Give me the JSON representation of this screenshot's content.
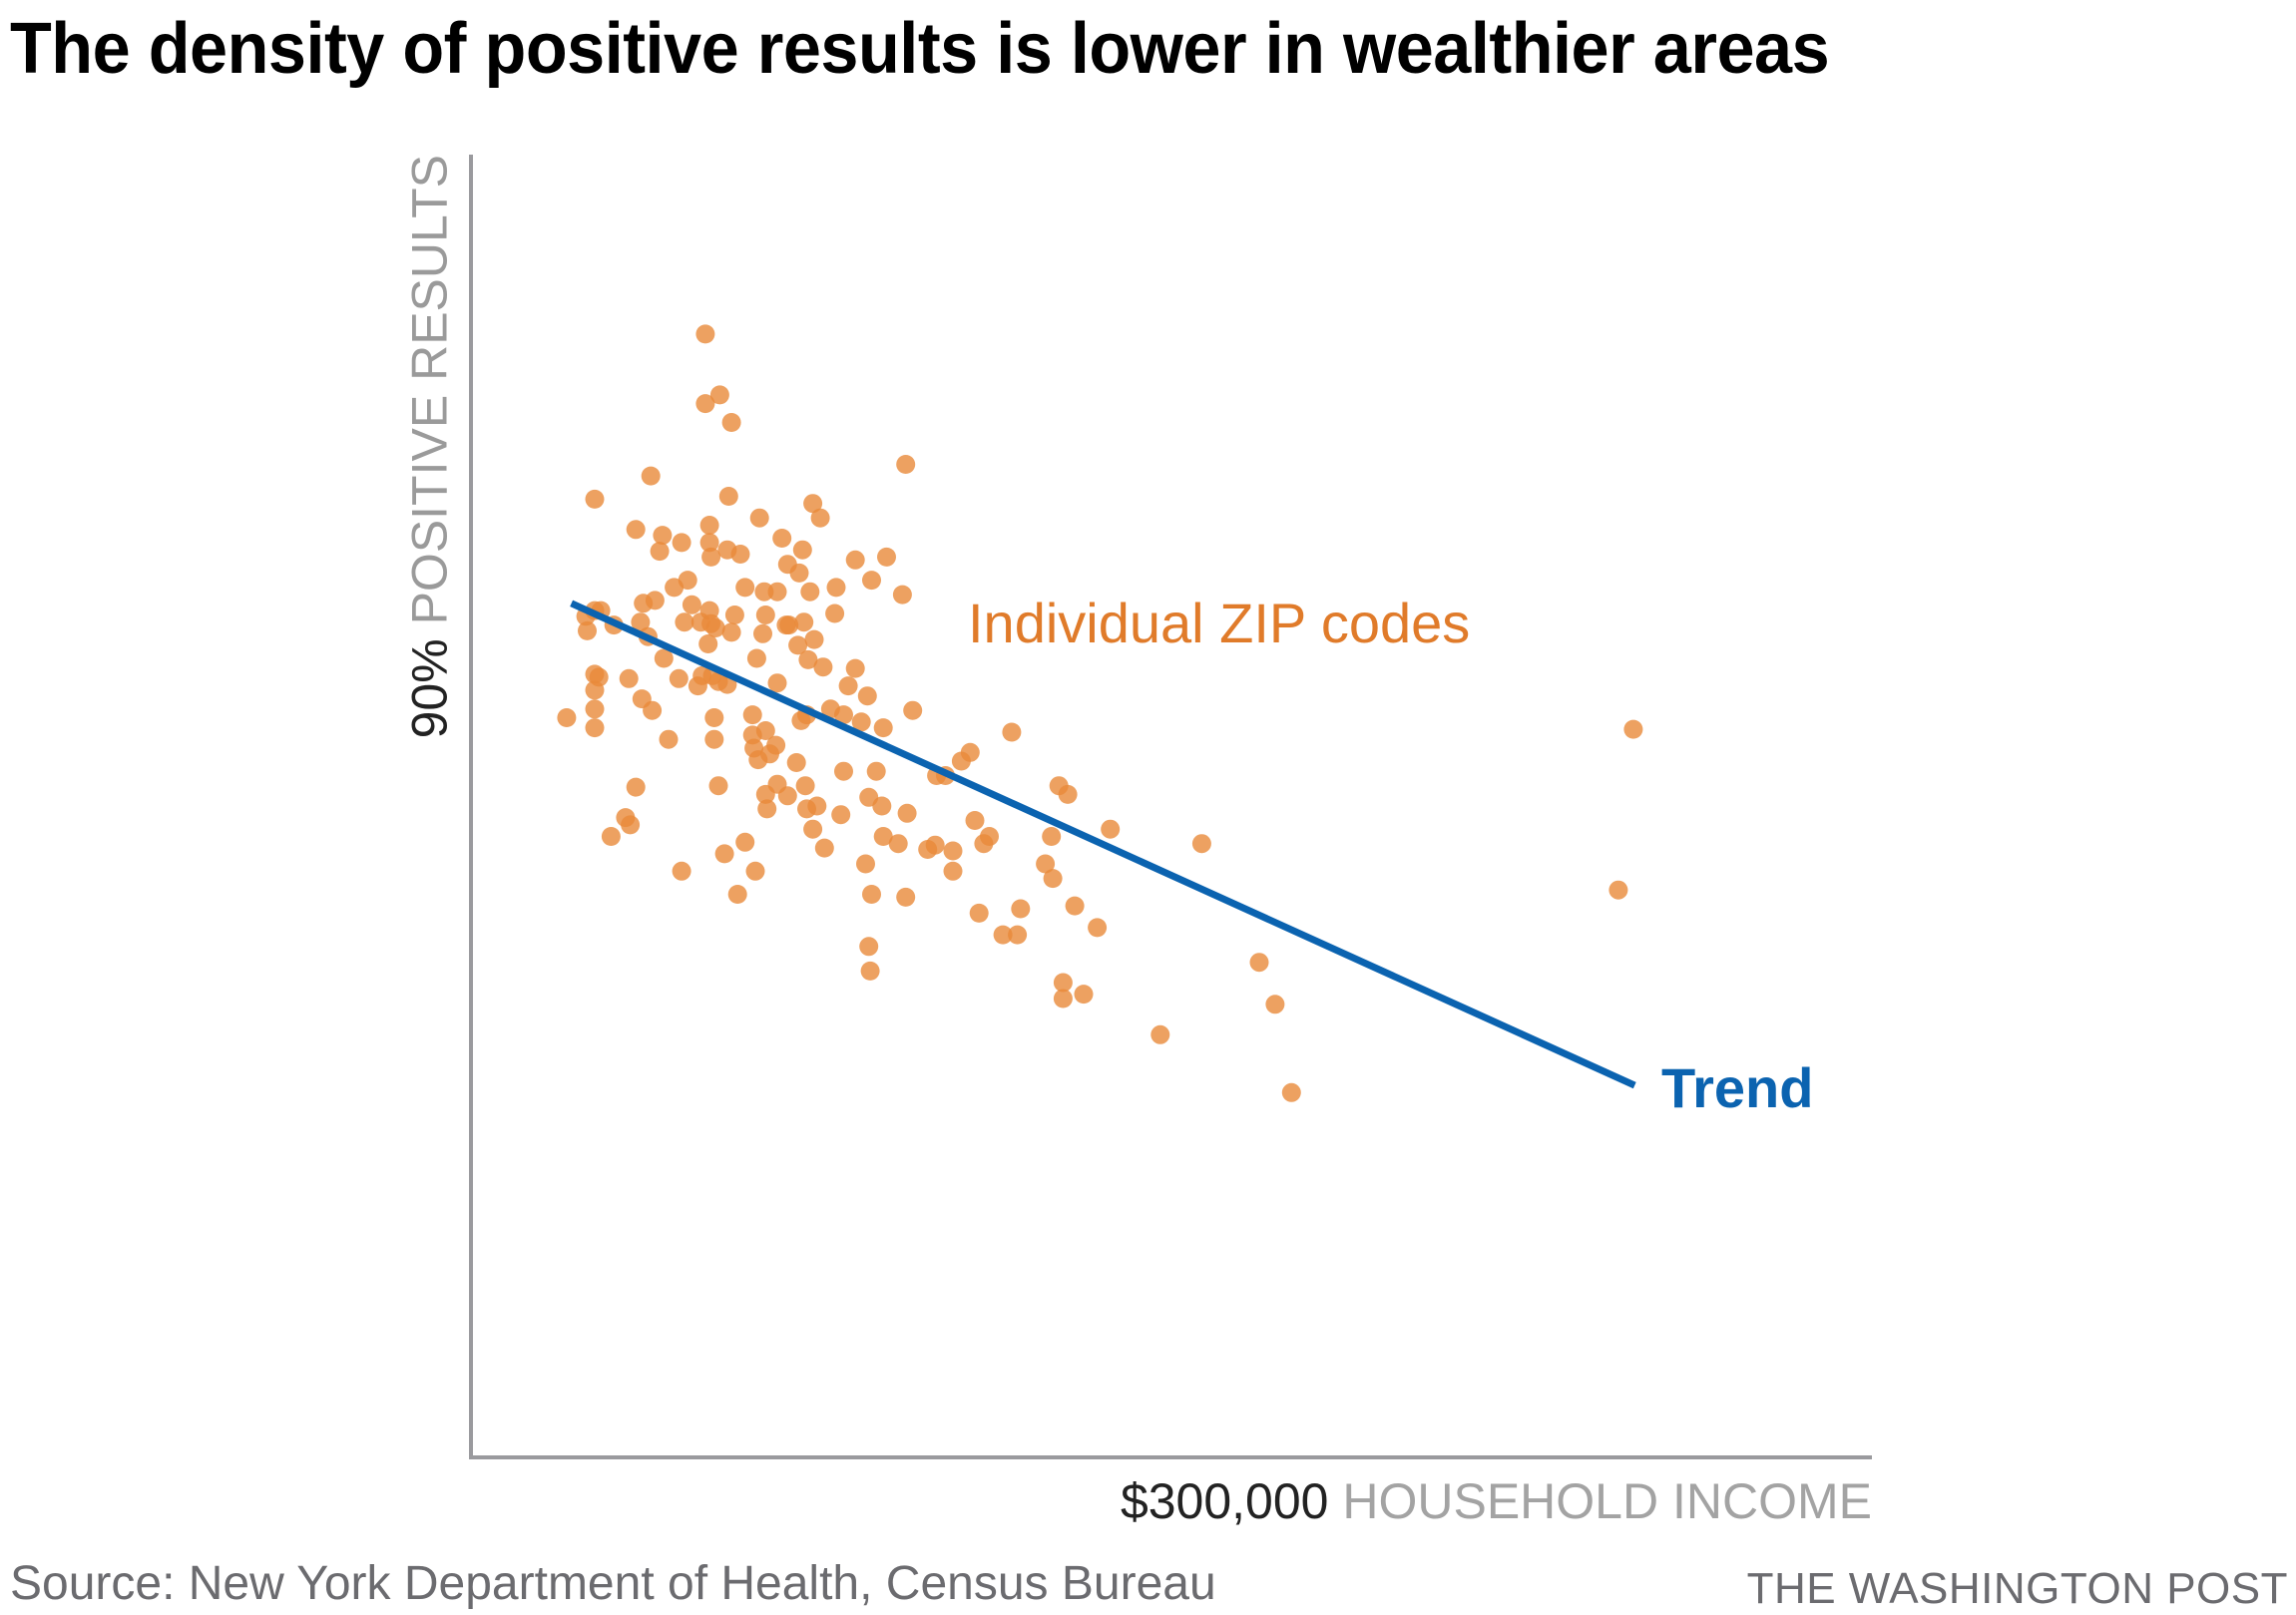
{
  "title": "The density of positive results is lower in wealthier areas",
  "source": "Source: New York Department of Health, Census Bureau",
  "credit": "THE WASHINGTON POST",
  "colors": {
    "dots": "#e8893a",
    "trend": "#0b63b0",
    "zip_label": "#e07b2a",
    "axis": "#9a9a9e"
  },
  "chart_data": {
    "type": "scatter",
    "title": "The density of positive results is lower in wealthier areas",
    "xlabel": "HOUSEHOLD INCOME",
    "ylabel": "POSITIVE RESULTS",
    "x_tick_label": "$300,000",
    "y_tick_label": "90%",
    "xlim": [
      0,
      300000
    ],
    "ylim": [
      0,
      90
    ],
    "x_units": "USD (thousands in points)",
    "y_units": "percent positive",
    "grid": false,
    "annotations": [
      {
        "text": "Individual ZIP codes",
        "target": "points"
      },
      {
        "text": "Trend",
        "target": "trend"
      }
    ],
    "series": [
      {
        "name": "Individual ZIP codes",
        "kind": "points",
        "points_k_pct": [
          [
            50.2,
            77.6
          ],
          [
            53.3,
            73.4
          ],
          [
            50.2,
            72.8
          ],
          [
            55.8,
            71.5
          ],
          [
            93.1,
            68.6
          ],
          [
            38.5,
            67.8
          ],
          [
            26.5,
            66.2
          ],
          [
            55.2,
            66.4
          ],
          [
            73.2,
            65.9
          ],
          [
            74.8,
            64.9
          ],
          [
            61.8,
            64.9
          ],
          [
            51.1,
            64.4
          ],
          [
            35.3,
            64.1
          ],
          [
            41.0,
            63.7
          ],
          [
            45.1,
            63.2
          ],
          [
            40.4,
            62.6
          ],
          [
            51.1,
            63.2
          ],
          [
            54.9,
            62.7
          ],
          [
            57.7,
            62.4
          ],
          [
            51.4,
            62.2
          ],
          [
            66.6,
            63.5
          ],
          [
            67.8,
            61.7
          ],
          [
            71.0,
            62.7
          ],
          [
            82.3,
            62.0
          ],
          [
            89.0,
            62.2
          ],
          [
            70.3,
            61.1
          ],
          [
            85.8,
            60.6
          ],
          [
            92.4,
            59.6
          ],
          [
            46.4,
            60.6
          ],
          [
            43.5,
            60.1
          ],
          [
            58.7,
            60.1
          ],
          [
            62.8,
            59.8
          ],
          [
            65.6,
            59.8
          ],
          [
            72.6,
            59.8
          ],
          [
            78.2,
            60.1
          ],
          [
            47.3,
            58.9
          ],
          [
            51.1,
            58.5
          ],
          [
            56.5,
            58.2
          ],
          [
            63.1,
            58.2
          ],
          [
            67.5,
            57.5
          ],
          [
            71.3,
            57.7
          ],
          [
            77.9,
            58.3
          ],
          [
            36.9,
            59.0
          ],
          [
            39.4,
            59.2
          ],
          [
            36.3,
            57.7
          ],
          [
            45.7,
            57.7
          ],
          [
            49.2,
            57.7
          ],
          [
            51.4,
            57.6
          ],
          [
            52.4,
            57.3
          ],
          [
            55.8,
            57.0
          ],
          [
            62.5,
            56.9
          ],
          [
            68.1,
            57.5
          ],
          [
            73.5,
            56.5
          ],
          [
            26.5,
            58.5
          ],
          [
            24.6,
            58.1
          ],
          [
            27.8,
            58.5
          ],
          [
            30.6,
            57.5
          ],
          [
            24.9,
            57.1
          ],
          [
            37.9,
            56.7
          ],
          [
            50.8,
            56.2
          ],
          [
            41.3,
            55.2
          ],
          [
            70.0,
            56.1
          ],
          [
            61.2,
            55.2
          ],
          [
            75.4,
            54.6
          ],
          [
            82.3,
            54.5
          ],
          [
            51.7,
            54.0
          ],
          [
            54.9,
            53.4
          ],
          [
            65.6,
            53.5
          ],
          [
            72.2,
            55.1
          ],
          [
            44.5,
            53.8
          ],
          [
            26.5,
            54.1
          ],
          [
            27.4,
            53.9
          ],
          [
            33.8,
            53.8
          ],
          [
            26.5,
            53.0
          ],
          [
            36.6,
            52.4
          ],
          [
            38.8,
            51.6
          ],
          [
            48.6,
            53.3
          ],
          [
            49.5,
            54.0
          ],
          [
            53.0,
            53.6
          ],
          [
            80.8,
            53.3
          ],
          [
            84.9,
            52.6
          ],
          [
            77.0,
            51.7
          ],
          [
            79.8,
            51.3
          ],
          [
            83.6,
            50.8
          ],
          [
            70.7,
            50.9
          ],
          [
            26.5,
            51.7
          ],
          [
            20.5,
            51.1
          ],
          [
            26.5,
            50.4
          ],
          [
            52.1,
            51.1
          ],
          [
            60.3,
            51.3
          ],
          [
            63.1,
            50.2
          ],
          [
            42.3,
            49.6
          ],
          [
            94.6,
            51.6
          ],
          [
            71.9,
            51.3
          ],
          [
            88.3,
            50.4
          ],
          [
            60.3,
            49.9
          ],
          [
            65.3,
            49.2
          ],
          [
            60.6,
            49.0
          ],
          [
            61.5,
            48.2
          ],
          [
            64.0,
            48.6
          ],
          [
            69.7,
            48.0
          ],
          [
            52.1,
            49.6
          ],
          [
            53.0,
            46.4
          ],
          [
            65.6,
            46.5
          ],
          [
            63.1,
            45.8
          ],
          [
            71.6,
            46.4
          ],
          [
            67.8,
            45.7
          ],
          [
            79.8,
            47.4
          ],
          [
            86.8,
            47.4
          ],
          [
            99.7,
            47.1
          ],
          [
            101.6,
            47.1
          ],
          [
            105.0,
            48.1
          ],
          [
            106.9,
            48.7
          ],
          [
            115.8,
            50.1
          ],
          [
            125.9,
            46.4
          ],
          [
            127.8,
            45.8
          ],
          [
            35.3,
            46.3
          ],
          [
            74.1,
            45.0
          ],
          [
            71.9,
            44.8
          ],
          [
            63.4,
            44.8
          ],
          [
            85.2,
            45.6
          ],
          [
            88.0,
            45.0
          ],
          [
            93.4,
            44.5
          ],
          [
            79.2,
            44.4
          ],
          [
            107.9,
            44.0
          ],
          [
            136.9,
            43.4
          ],
          [
            156.5,
            42.4
          ],
          [
            33.1,
            44.2
          ],
          [
            34.1,
            43.7
          ],
          [
            30.0,
            42.9
          ],
          [
            73.2,
            43.4
          ],
          [
            58.7,
            42.5
          ],
          [
            75.7,
            42.1
          ],
          [
            88.3,
            42.9
          ],
          [
            91.5,
            42.4
          ],
          [
            97.8,
            42.0
          ],
          [
            99.4,
            42.3
          ],
          [
            103.2,
            41.9
          ],
          [
            111.0,
            42.9
          ],
          [
            109.8,
            42.4
          ],
          [
            124.3,
            42.9
          ],
          [
            54.3,
            41.7
          ],
          [
            84.5,
            41.0
          ],
          [
            60.9,
            40.5
          ],
          [
            45.1,
            40.5
          ],
          [
            57.1,
            38.9
          ],
          [
            85.8,
            38.9
          ],
          [
            93.1,
            38.7
          ],
          [
            103.2,
            40.5
          ],
          [
            123.0,
            41.0
          ],
          [
            124.6,
            40.0
          ],
          [
            129.3,
            38.1
          ],
          [
            134.1,
            36.6
          ],
          [
            108.8,
            37.6
          ],
          [
            113.9,
            36.1
          ],
          [
            117.0,
            36.1
          ],
          [
            117.7,
            37.9
          ],
          [
            85.2,
            35.3
          ],
          [
            85.5,
            33.6
          ],
          [
            126.8,
            32.8
          ],
          [
            131.2,
            32.0
          ],
          [
            126.8,
            31.7
          ],
          [
            147.6,
            29.2
          ],
          [
            168.8,
            34.2
          ],
          [
            172.2,
            31.3
          ],
          [
            175.7,
            25.2
          ],
          [
            248.9,
            50.3
          ],
          [
            245.7,
            39.2
          ]
        ]
      },
      {
        "name": "Trend",
        "kind": "line",
        "points_k_pct": [
          [
            21.5,
            59.0
          ],
          [
            249.2,
            25.7
          ]
        ]
      }
    ]
  },
  "labels": {
    "y_value": "90%",
    "y_name": " POSITIVE RESULTS",
    "x_value": "$300,000",
    "x_name": " HOUSEHOLD INCOME",
    "zip": "Individual ZIP codes",
    "trend": "Trend"
  }
}
